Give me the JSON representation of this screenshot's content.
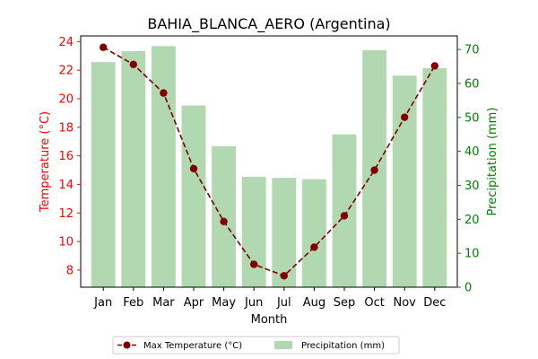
{
  "chart_data": {
    "type": "bar+line",
    "title": "BAHIA_BLANCA_AERO (Argentina)",
    "xlabel": "Month",
    "ylabel_left": "Temperature (°C)",
    "ylabel_right": "Precipitation (mm)",
    "categories": [
      "Jan",
      "Feb",
      "Mar",
      "Apr",
      "May",
      "Jun",
      "Jul",
      "Aug",
      "Sep",
      "Oct",
      "Nov",
      "Dec"
    ],
    "ylim_left": [
      6.8,
      24.4
    ],
    "yticks_left": [
      8,
      10,
      12,
      14,
      16,
      18,
      20,
      22,
      24
    ],
    "ylim_right": [
      0,
      74
    ],
    "yticks_right": [
      0,
      10,
      20,
      30,
      40,
      50,
      60,
      70
    ],
    "grid": false,
    "legend_position": "bottom-center",
    "series": [
      {
        "name": "Max Temperature (°C)",
        "kind": "line",
        "axis": "left",
        "color": "#800000",
        "line_style": "dashed",
        "marker": "circle",
        "values": [
          23.6,
          22.4,
          20.4,
          15.1,
          11.4,
          8.4,
          7.6,
          9.6,
          11.8,
          15.0,
          18.7,
          22.3
        ]
      },
      {
        "name": "Precipitation (mm)",
        "kind": "bar",
        "axis": "right",
        "color": "#b2d8b2",
        "values": [
          66.3,
          69.5,
          71.0,
          53.5,
          41.5,
          32.5,
          32.2,
          31.8,
          45.0,
          69.8,
          62.3,
          64.5
        ]
      }
    ],
    "colors": {
      "left_axis": "#ff0000",
      "right_axis": "#008000",
      "title": "#000000"
    }
  }
}
